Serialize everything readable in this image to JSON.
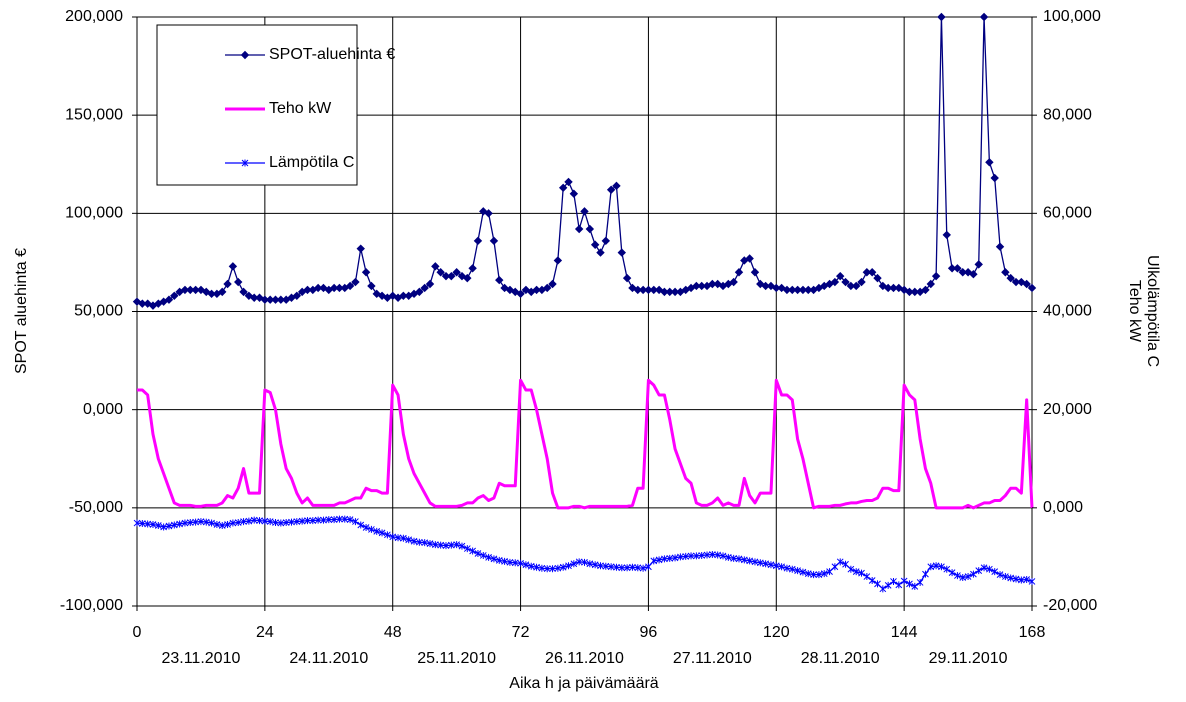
{
  "chart_data": {
    "type": "line",
    "ylabel": "SPOT aluehinta €",
    "y2label": [
      "Ulkolämpötila C",
      "Teho kW"
    ],
    "xlabel": "Aika h ja päivämäärä",
    "date_labels": [
      "23.11.2010",
      "24.11.2010",
      "25.11.2010",
      "26.11.2010",
      "27.11.2010",
      "28.11.2010",
      "29.11.2010"
    ],
    "grid": true,
    "xlim": [
      0,
      168
    ],
    "xticks": [
      0,
      24,
      48,
      72,
      96,
      120,
      144,
      168
    ],
    "ylim": [
      -100,
      200
    ],
    "yticks": [
      {
        "value": -100,
        "label": "-100,000"
      },
      {
        "value": -50,
        "label": "-50,000"
      },
      {
        "value": 0,
        "label": "0,000"
      },
      {
        "value": 50,
        "label": "50,000"
      },
      {
        "value": 100,
        "label": "100,000"
      },
      {
        "value": 150,
        "label": "150,000"
      },
      {
        "value": 200,
        "label": "200,000"
      }
    ],
    "y2lim": [
      -20,
      100
    ],
    "y2ticks": [
      {
        "value": -20,
        "label": "-20,000"
      },
      {
        "value": 0,
        "label": "0,000"
      },
      {
        "value": 20,
        "label": "20,000"
      },
      {
        "value": 40,
        "label": "40,000"
      },
      {
        "value": 60,
        "label": "60,000"
      },
      {
        "value": 80,
        "label": "80,000"
      },
      {
        "value": 100,
        "label": "100,000"
      }
    ],
    "x": [
      0,
      1,
      2,
      3,
      4,
      5,
      6,
      7,
      8,
      9,
      10,
      11,
      12,
      13,
      14,
      15,
      16,
      17,
      18,
      19,
      20,
      21,
      22,
      23,
      24,
      25,
      26,
      27,
      28,
      29,
      30,
      31,
      32,
      33,
      34,
      35,
      36,
      37,
      38,
      39,
      40,
      41,
      42,
      43,
      44,
      45,
      46,
      47,
      48,
      49,
      50,
      51,
      52,
      53,
      54,
      55,
      56,
      57,
      58,
      59,
      60,
      61,
      62,
      63,
      64,
      65,
      66,
      67,
      68,
      69,
      70,
      71,
      72,
      73,
      74,
      75,
      76,
      77,
      78,
      79,
      80,
      81,
      82,
      83,
      84,
      85,
      86,
      87,
      88,
      89,
      90,
      91,
      92,
      93,
      94,
      95,
      96,
      97,
      98,
      99,
      100,
      101,
      102,
      103,
      104,
      105,
      106,
      107,
      108,
      109,
      110,
      111,
      112,
      113,
      114,
      115,
      116,
      117,
      118,
      119,
      120,
      121,
      122,
      123,
      124,
      125,
      126,
      127,
      128,
      129,
      130,
      131,
      132,
      133,
      134,
      135,
      136,
      137,
      138,
      139,
      140,
      141,
      142,
      143,
      144,
      145,
      146,
      147,
      148,
      149,
      150,
      151,
      152,
      153,
      154,
      155,
      156,
      157,
      158,
      159,
      160,
      161,
      162,
      163,
      164,
      165,
      166,
      167,
      168
    ],
    "series": [
      {
        "name": "SPOT-aluehinta €",
        "color": "#000080",
        "marker": "diamond",
        "axis": "y",
        "values": [
          55,
          54,
          54,
          53,
          54,
          55,
          56,
          58,
          60,
          61,
          61,
          61,
          61,
          60,
          59,
          59,
          60,
          64,
          73,
          65,
          60,
          58,
          57,
          57,
          56,
          56,
          56,
          56,
          56,
          57,
          58,
          60,
          61,
          61,
          62,
          62,
          61,
          62,
          62,
          62,
          63,
          65,
          82,
          70,
          63,
          59,
          58,
          57,
          58,
          57,
          58,
          58,
          59,
          60,
          62,
          64,
          73,
          70,
          68,
          68,
          70,
          68,
          67,
          72,
          86,
          101,
          100,
          86,
          66,
          62,
          61,
          60,
          59,
          61,
          60,
          61,
          61,
          62,
          64,
          76,
          113,
          116,
          110,
          92,
          101,
          92,
          84,
          80,
          86,
          112,
          114,
          80,
          67,
          62,
          61,
          61,
          61,
          61,
          61,
          60,
          60,
          60,
          60,
          61,
          62,
          63,
          63,
          63,
          64,
          64,
          63,
          64,
          65,
          70,
          76,
          77,
          70,
          64,
          63,
          63,
          62,
          62,
          61,
          61,
          61,
          61,
          61,
          61,
          62,
          63,
          64,
          65,
          68,
          65,
          63,
          63,
          65,
          70,
          70,
          67,
          63,
          62,
          62,
          62,
          61,
          60,
          60,
          60,
          61,
          64,
          68,
          200,
          89,
          72,
          72,
          70,
          70,
          69,
          74,
          200,
          126,
          118,
          83,
          70,
          67,
          65,
          65,
          64,
          62
        ]
      },
      {
        "name": "Teho kW",
        "color": "#ff00ff",
        "marker": "none",
        "axis": "y2",
        "values": [
          24,
          24,
          23,
          15,
          10,
          7,
          4,
          1,
          0.5,
          0.5,
          0.5,
          0.3,
          0.3,
          0.5,
          0.5,
          0.5,
          1,
          2.5,
          2,
          4,
          8,
          3,
          3,
          3,
          24,
          23.5,
          20,
          13,
          8,
          6,
          3,
          1,
          2,
          0.5,
          0.5,
          0.5,
          0.5,
          0.5,
          1,
          1,
          1.5,
          2,
          2,
          4,
          3.5,
          3.5,
          3,
          3,
          25,
          23,
          15,
          10,
          7,
          5,
          3,
          1,
          0.3,
          0.3,
          0.3,
          0.3,
          0.3,
          0.5,
          1,
          1,
          2,
          2.5,
          1.5,
          2,
          5,
          4.5,
          4.5,
          4.5,
          26,
          24,
          24,
          20,
          15,
          10,
          3,
          0,
          0,
          0,
          0.3,
          0.3,
          0,
          0.3,
          0.3,
          0.3,
          0.3,
          0.3,
          0.3,
          0.3,
          0.3,
          0.5,
          4,
          4,
          26,
          25,
          23,
          23,
          18,
          12,
          9,
          6,
          5,
          1,
          0.5,
          0.5,
          1,
          2,
          0.5,
          1,
          0.5,
          0.5,
          6,
          2.5,
          1,
          3,
          3,
          3,
          26,
          23,
          23,
          22,
          14,
          10,
          5,
          0,
          0.3,
          0.3,
          0.3,
          0.5,
          0.5,
          0.8,
          1,
          1,
          1.3,
          1.5,
          1.5,
          2,
          4,
          4,
          3.5,
          3.5,
          25,
          23,
          22,
          14,
          8,
          5,
          0,
          0,
          0,
          0,
          0,
          0,
          0.5,
          0,
          0.5,
          1,
          1,
          1.5,
          1.5,
          2.5,
          4,
          4,
          3,
          22,
          0
        ]
      },
      {
        "name": "Lämpötila C",
        "color": "#0000ff",
        "marker": "asterisk",
        "axis": "y2",
        "values": [
          -3.1,
          -3.2,
          -3.3,
          -3.4,
          -3.6,
          -3.9,
          -3.7,
          -3.5,
          -3.3,
          -3.1,
          -3,
          -2.9,
          -2.8,
          -2.9,
          -3.1,
          -3.4,
          -3.6,
          -3.4,
          -3.1,
          -3,
          -2.8,
          -2.7,
          -2.5,
          -2.6,
          -2.7,
          -2.8,
          -3,
          -3.1,
          -3,
          -2.9,
          -2.8,
          -2.7,
          -2.6,
          -2.6,
          -2.5,
          -2.5,
          -2.4,
          -2.4,
          -2.3,
          -2.3,
          -2.4,
          -2.8,
          -3.5,
          -4,
          -4.4,
          -4.8,
          -5.1,
          -5.5,
          -5.9,
          -6.1,
          -6.2,
          -6.5,
          -6.8,
          -7,
          -7.1,
          -7.3,
          -7.5,
          -7.6,
          -7.7,
          -7.6,
          -7.5,
          -7.8,
          -8.3,
          -8.8,
          -9.3,
          -9.7,
          -10.1,
          -10.4,
          -10.7,
          -10.9,
          -11.1,
          -11.2,
          -11.3,
          -11.6,
          -11.9,
          -12.1,
          -12.3,
          -12.4,
          -12.4,
          -12.3,
          -12.1,
          -11.8,
          -11.4,
          -11,
          -11.1,
          -11.4,
          -11.6,
          -11.8,
          -11.9,
          -12,
          -12.1,
          -12.2,
          -12.2,
          -12.1,
          -12.2,
          -12.3,
          -12,
          -10.8,
          -10.6,
          -10.4,
          -10.3,
          -10.2,
          -10,
          -9.9,
          -9.8,
          -9.8,
          -9.7,
          -9.6,
          -9.5,
          -9.6,
          -9.8,
          -10.1,
          -10.3,
          -10.4,
          -10.6,
          -10.8,
          -11,
          -11.2,
          -11.4,
          -11.6,
          -11.8,
          -12,
          -12.3,
          -12.5,
          -12.8,
          -13.1,
          -13.4,
          -13.6,
          -13.6,
          -13.4,
          -13,
          -12,
          -11,
          -11.5,
          -12.5,
          -13,
          -13.3,
          -14,
          -14.8,
          -15.5,
          -16.5,
          -15.8,
          -15,
          -15.7,
          -14.9,
          -15.5,
          -16,
          -15.2,
          -13.5,
          -12,
          -11.8,
          -12,
          -12.5,
          -13.2,
          -13.8,
          -14.2,
          -14,
          -13.5,
          -12.8,
          -12.2,
          -12.5,
          -13,
          -13.6,
          -14,
          -14.3,
          -14.5,
          -14.7,
          -14.6,
          -15
        ]
      }
    ]
  }
}
